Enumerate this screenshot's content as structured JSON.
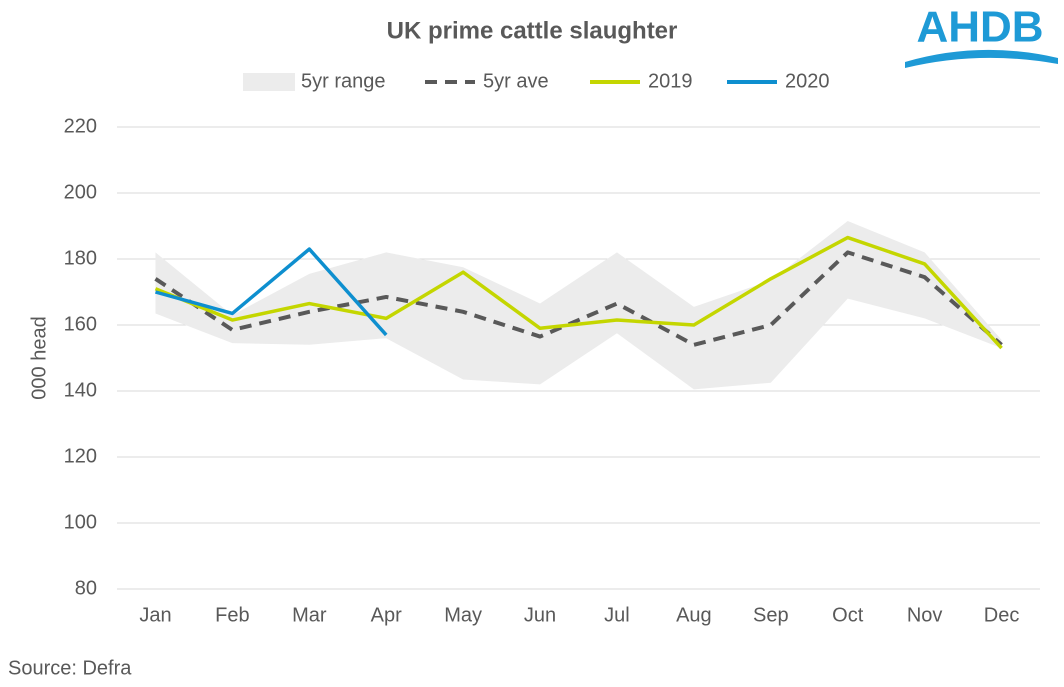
{
  "chart_data": {
    "type": "line",
    "title": "UK prime cattle slaughter",
    "logo": "AHDB",
    "source": "Source: Defra",
    "y_label": "000 head",
    "categories": [
      "Jan",
      "Feb",
      "Mar",
      "Apr",
      "May",
      "Jun",
      "Jul",
      "Aug",
      "Sep",
      "Oct",
      "Nov",
      "Dec"
    ],
    "ylim": [
      80,
      220
    ],
    "yticks": [
      80,
      100,
      120,
      140,
      160,
      180,
      200,
      220
    ],
    "grid": true,
    "legend": "top",
    "series": [
      {
        "name": "5yr range",
        "color": "#ececec",
        "kind": "range",
        "low": [
          163.5,
          154.5,
          154,
          156,
          143.5,
          142,
          157.5,
          140.5,
          142.5,
          168,
          162,
          153
        ],
        "high": [
          182,
          163,
          175.5,
          182,
          177.5,
          166.5,
          182,
          165.5,
          173.5,
          191.5,
          182,
          155.5
        ]
      },
      {
        "name": "5yr ave",
        "color": "#595959",
        "dash": true,
        "values": [
          174,
          158.5,
          164,
          168.5,
          164,
          156.5,
          166.5,
          154,
          160,
          182,
          174.5,
          154
        ]
      },
      {
        "name": "2019",
        "color": "#c4d600",
        "values": [
          171,
          161.5,
          166.5,
          162,
          176,
          159,
          161.5,
          160,
          174,
          186.5,
          178.5,
          153
        ]
      },
      {
        "name": "2020",
        "color": "#0e8fcf",
        "values": [
          170,
          163.5,
          183,
          157,
          null,
          null,
          null,
          null,
          null,
          null,
          null,
          null
        ]
      }
    ]
  }
}
